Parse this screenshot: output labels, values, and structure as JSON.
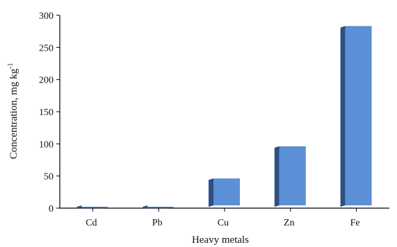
{
  "chart_data": {
    "type": "bar",
    "title": "",
    "xlabel": "Heavy metals",
    "ylabel_main": "Concentration, mg kg",
    "ylabel_sup": "-1",
    "categories": [
      "Cd",
      "Pb",
      "Cu",
      "Zn",
      "Fe"
    ],
    "values": [
      2,
      2,
      46,
      96,
      283
    ],
    "ylim": [
      0,
      300
    ],
    "yticks": [
      "0",
      "50",
      "100",
      "150",
      "200",
      "250",
      "300"
    ],
    "grid": false,
    "legend": "none",
    "colors": {
      "bar_front": "#5b8fd6",
      "bar_side": "#2d4f83",
      "bar_top": "#1e3a66",
      "axis": "#000000"
    }
  }
}
